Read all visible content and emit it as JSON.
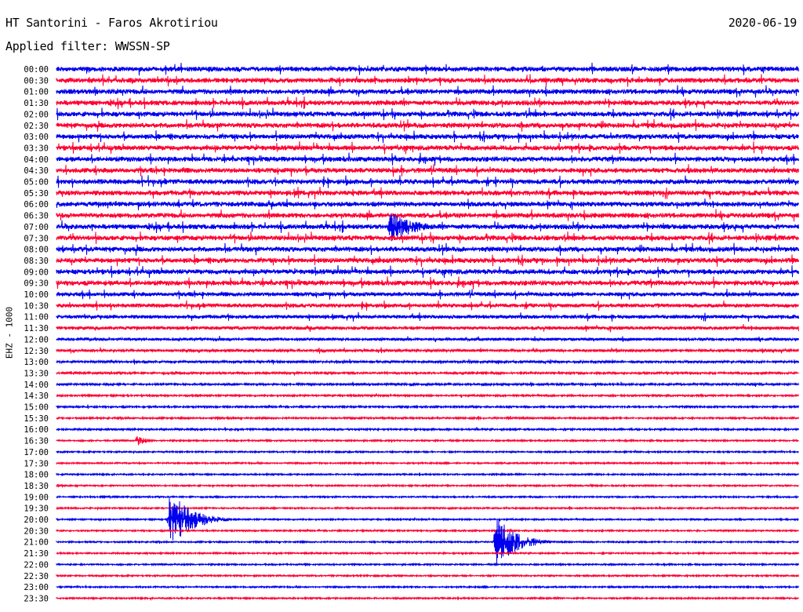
{
  "header": {
    "title": "HT Santorini - Faros Akrotiriou",
    "date": "2020-06-19",
    "filter": "Applied filter: WWSSN-SP",
    "channel_label": "EHZ - 1000"
  },
  "colors": {
    "trace_a": "#0000ee",
    "trace_b": "#ff0033"
  },
  "chart_data": {
    "type": "helicorder",
    "title": "HT Santorini - Faros Akrotiriou",
    "ylabel": "EHZ - 1000",
    "row_labels": [
      "00:00",
      "00:30",
      "01:00",
      "01:30",
      "02:00",
      "02:30",
      "03:00",
      "03:30",
      "04:00",
      "04:30",
      "05:00",
      "05:30",
      "06:00",
      "06:30",
      "07:00",
      "07:30",
      "08:00",
      "08:30",
      "09:00",
      "09:30",
      "10:00",
      "10:30",
      "11:00",
      "11:30",
      "12:00",
      "12:30",
      "13:00",
      "13:30",
      "14:00",
      "14:30",
      "15:00",
      "15:30",
      "16:00",
      "16:30",
      "17:00",
      "17:30",
      "18:00",
      "18:30",
      "19:00",
      "19:30",
      "20:00",
      "20:30",
      "21:00",
      "21:30",
      "22:00",
      "22:30",
      "23:00",
      "23:30"
    ],
    "row_minutes": 30,
    "noise_level_by_row": [
      1.0,
      1.0,
      1.0,
      1.0,
      1.0,
      1.0,
      1.0,
      1.0,
      1.0,
      1.0,
      1.0,
      1.0,
      1.0,
      1.0,
      1.0,
      1.0,
      1.0,
      1.0,
      1.0,
      1.0,
      0.85,
      0.8,
      0.75,
      0.7,
      0.55,
      0.5,
      0.45,
      0.4,
      0.4,
      0.35,
      0.35,
      0.35,
      0.35,
      0.3,
      0.3,
      0.3,
      0.3,
      0.3,
      0.3,
      0.3,
      0.3,
      0.3,
      0.3,
      0.3,
      0.3,
      0.3,
      0.3,
      0.3
    ],
    "events": [
      {
        "row": 14,
        "minute": 13.5,
        "amplitude": 1.4,
        "duration_min": 2.5
      },
      {
        "row": 33,
        "minute": 3.3,
        "amplitude": 0.5,
        "duration_min": 0.8
      },
      {
        "row": 40,
        "minute": 4.6,
        "amplitude": 2.3,
        "duration_min": 2.4
      },
      {
        "row": 42,
        "minute": 17.8,
        "amplitude": 2.1,
        "duration_min": 2.2
      }
    ]
  }
}
